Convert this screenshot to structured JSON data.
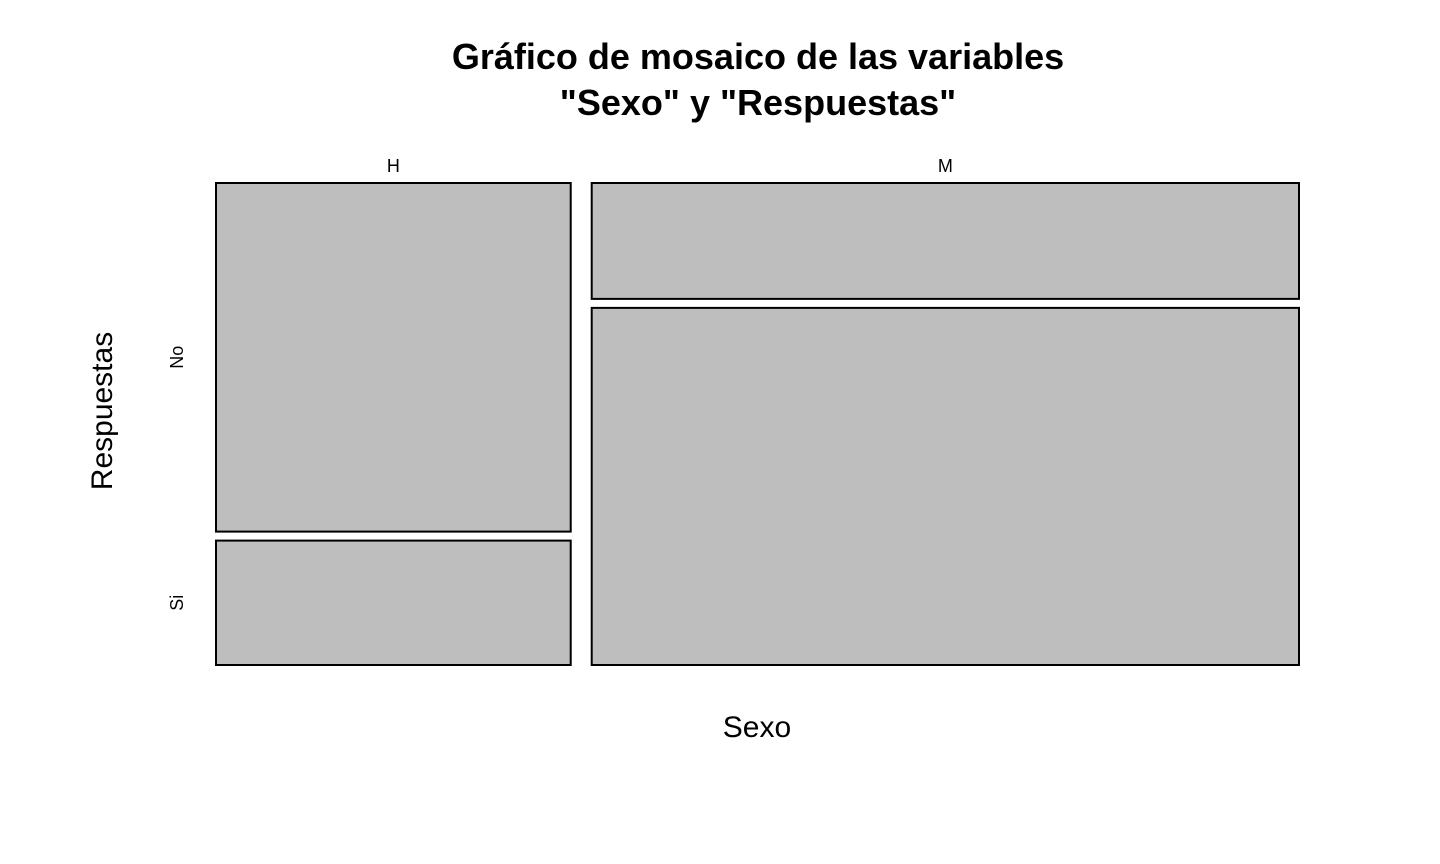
{
  "chart_data": {
    "type": "mosaic",
    "title_lines": [
      "Gráfico de mosaico de las variables",
      "\"Sexo\" y \"Respuestas\""
    ],
    "xlabel": "Sexo",
    "ylabel": "Respuestas",
    "x_categories": [
      "H",
      "M"
    ],
    "y_categories": [
      "No",
      "Si"
    ],
    "x_proportions": [
      0.334,
      0.666
    ],
    "conditional_proportions": [
      {
        "category": "H",
        "No": 0.737,
        "Si": 0.263
      },
      {
        "category": "M",
        "No": 0.245,
        "Si": 0.755
      }
    ],
    "fill_color": "#bebebe",
    "stroke_color": "#000000"
  }
}
